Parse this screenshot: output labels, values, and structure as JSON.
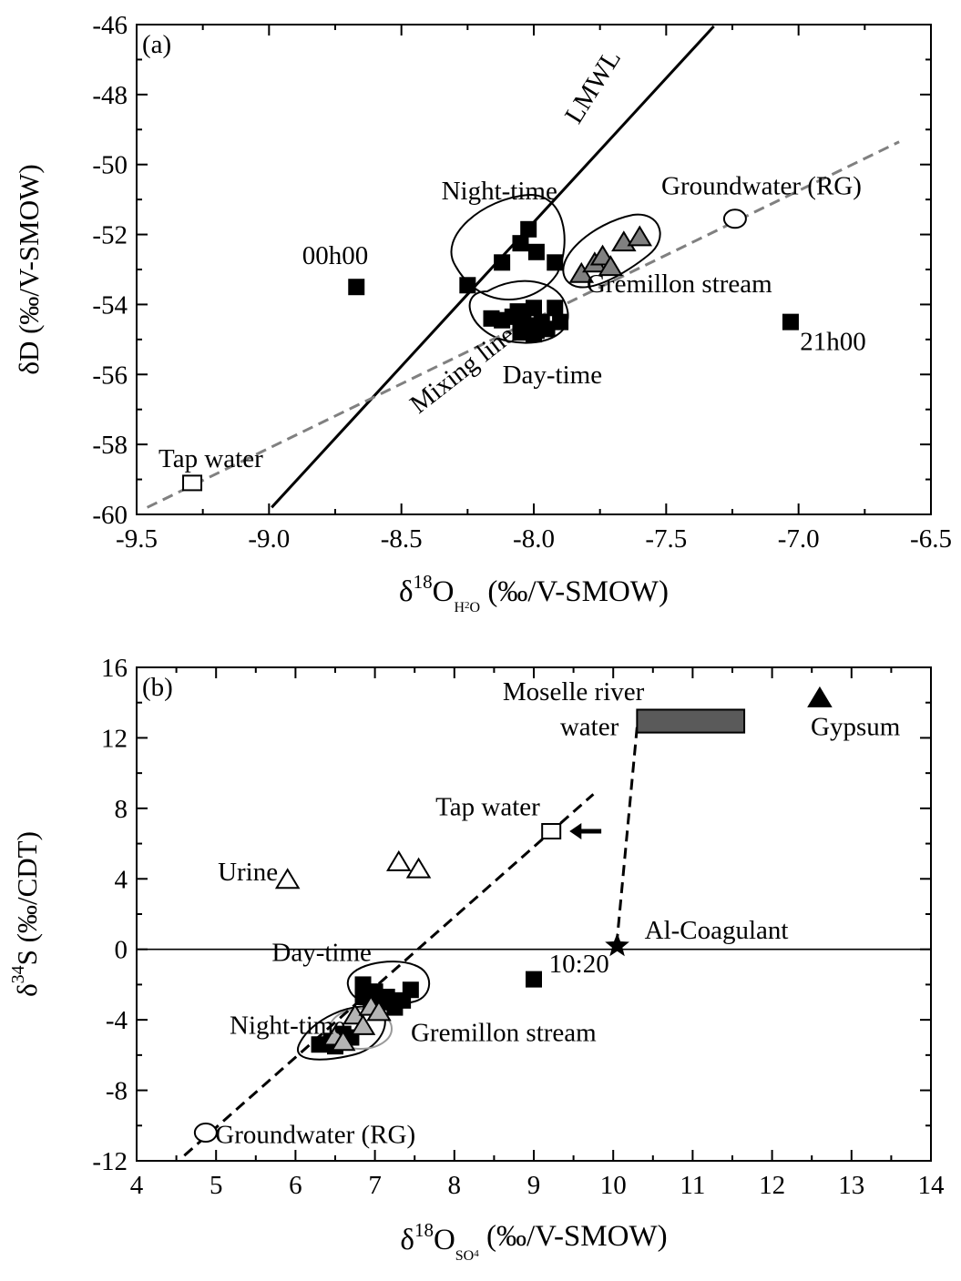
{
  "chart_data": [
    {
      "type": "scatter",
      "panel_label": "(a)",
      "xlabel": {
        "base": "δ",
        "sup": "18",
        "main": "O",
        "sub": "H",
        "sub2": "2",
        "sub3": "O",
        "unit": " (‰/V-SMOW)"
      },
      "ylabel": "δD (‰/V-SMOW)",
      "xlim": [
        -9.5,
        -6.5
      ],
      "ylim": [
        -60,
        -46
      ],
      "xticks": [
        -9.5,
        -9.0,
        -8.5,
        -8.0,
        -7.5,
        -7.0,
        -6.5
      ],
      "xtick_labels": [
        "-9.5",
        "-9.0",
        "-8.5",
        "-8.0",
        "-7.5",
        "-7.0",
        "-6.5"
      ],
      "yticks": [
        -60,
        -58,
        -56,
        -54,
        -52,
        -50,
        -48,
        -46
      ],
      "ytick_labels": [
        "-60",
        "-58",
        "-56",
        "-54",
        "-52",
        "-50",
        "-48",
        "-46"
      ],
      "grid": false,
      "series": [
        {
          "marker": "square-filled",
          "color": "#000000",
          "x": [
            -8.25,
            -8.12,
            -8.05,
            -8.02,
            -7.99,
            -7.92
          ],
          "y": [
            -53.45,
            -52.8,
            -52.25,
            -51.85,
            -52.5,
            -52.8
          ]
        },
        {
          "marker": "square-filled",
          "color": "#000000",
          "x": [
            -8.16,
            -8.12,
            -8.08,
            -8.06,
            -8.04,
            -8.02,
            -8.0,
            -7.99,
            -7.97,
            -7.95,
            -7.92,
            -7.9,
            -8.05,
            -8.0
          ],
          "y": [
            -54.4,
            -54.45,
            -54.35,
            -54.2,
            -54.45,
            -54.6,
            -54.1,
            -54.75,
            -54.5,
            -54.7,
            -54.1,
            -54.5,
            -54.8,
            -54.85
          ]
        },
        {
          "marker": "triangle-gray",
          "color": "#808080",
          "x": [
            -7.82,
            -7.77,
            -7.74,
            -7.71,
            -7.66,
            -7.6
          ],
          "y": [
            -53.15,
            -52.85,
            -52.65,
            -52.95,
            -52.25,
            -52.1
          ]
        },
        {
          "marker": "square-filled",
          "color": "#000000",
          "x": [
            -8.67,
            -7.03
          ],
          "y": [
            -53.5,
            -54.5
          ]
        },
        {
          "marker": "square-open",
          "color": "#000000",
          "x": [
            -9.29
          ],
          "y": [
            -59.1
          ]
        },
        {
          "marker": "circle-open",
          "color": "#000000",
          "x": [
            -7.24
          ],
          "y": [
            -51.55
          ]
        }
      ],
      "lines": [
        {
          "style": "solid",
          "color": "#000000",
          "x": [
            -8.99,
            -7.32
          ],
          "y": [
            -59.8,
            -46.05
          ]
        },
        {
          "style": "dashed",
          "color": "#808080",
          "x": [
            -9.46,
            -6.62
          ],
          "y": [
            -59.8,
            -49.35
          ]
        }
      ],
      "annotations": [
        {
          "text": "LMWL",
          "x": -7.75,
          "y": -47.9,
          "rotate": -58
        },
        {
          "text": "Mixing line",
          "x": -8.25,
          "y": -56.05,
          "rotate": -38
        },
        {
          "text": "Night-time",
          "x": -8.13,
          "y": -51.0
        },
        {
          "text": "Groundwater (RG)",
          "x": -7.14,
          "y": -50.85
        },
        {
          "text": "00h00",
          "x": -8.75,
          "y": -52.85
        },
        {
          "text": "Gremillon stream",
          "x": -7.45,
          "y": -53.65
        },
        {
          "text": "21h00",
          "x": -6.87,
          "y": -55.3
        },
        {
          "text": "Day-time",
          "x": -7.93,
          "y": -56.25
        },
        {
          "text": "Tap water",
          "x": -9.22,
          "y": -58.65
        }
      ]
    },
    {
      "type": "scatter",
      "panel_label": "(b)",
      "xlabel": {
        "base": "δ",
        "sup": "18",
        "main": "O",
        "sub": "SO",
        "sub2": "4",
        "sub3": "",
        "unit": " (‰/V-SMOW)"
      },
      "ylabel": {
        "base": "δ",
        "sup": "34",
        "main": "S (‰/CDT)"
      },
      "xlim": [
        4,
        14
      ],
      "ylim": [
        -12,
        16
      ],
      "xticks": [
        4,
        5,
        6,
        7,
        8,
        9,
        10,
        11,
        12,
        13,
        14
      ],
      "xtick_labels": [
        "4",
        "5",
        "6",
        "7",
        "8",
        "9",
        "10",
        "11",
        "12",
        "13",
        "14"
      ],
      "yticks": [
        -12,
        -8,
        -4,
        0,
        4,
        8,
        12,
        16
      ],
      "ytick_labels": [
        "-12",
        "-8",
        "-4",
        "0",
        "4",
        "8",
        "12",
        "16"
      ],
      "grid": false,
      "series": [
        {
          "marker": "square-filled",
          "color": "#000000",
          "x": [
            6.3,
            6.45,
            6.5,
            6.6,
            6.7,
            6.85,
            6.95,
            7.05,
            7.15,
            7.25,
            7.35,
            7.45,
            6.95,
            7.0,
            6.85
          ],
          "y": [
            -5.4,
            -5.2,
            -5.5,
            -4.8,
            -5.0,
            -2.0,
            -2.5,
            -3.0,
            -2.7,
            -3.3,
            -2.9,
            -2.3,
            -3.2,
            -2.4,
            -2.7
          ]
        },
        {
          "marker": "triangle-gray",
          "color": "#b4b4b4",
          "x": [
            6.5,
            6.6,
            6.75,
            6.85,
            6.95,
            7.05
          ],
          "y": [
            -5.0,
            -5.3,
            -3.8,
            -4.4,
            -3.3,
            -3.6
          ]
        },
        {
          "marker": "square-filled",
          "color": "#000000",
          "x": [
            9.0
          ],
          "y": [
            -1.7
          ]
        },
        {
          "marker": "triangle-open",
          "color": "#000000",
          "x": [
            5.9,
            7.3,
            7.55
          ],
          "y": [
            3.9,
            4.9,
            4.5
          ]
        },
        {
          "marker": "square-open",
          "color": "#000000",
          "x": [
            9.22
          ],
          "y": [
            6.7
          ]
        },
        {
          "marker": "circle-open",
          "color": "#000000",
          "x": [
            4.87
          ],
          "y": [
            -10.4
          ]
        },
        {
          "marker": "star-filled",
          "color": "#000000",
          "x": [
            10.05
          ],
          "y": [
            0.2
          ]
        },
        {
          "marker": "triangle-filled",
          "color": "#000000",
          "x": [
            12.6
          ],
          "y": [
            14.2
          ]
        }
      ],
      "lines": [
        {
          "style": "solid",
          "color": "#000000",
          "x": [
            4,
            14
          ],
          "y": [
            0,
            0
          ]
        },
        {
          "style": "dashed",
          "color": "#000000",
          "x": [
            4.6,
            9.75
          ],
          "y": [
            -11.7,
            8.8
          ]
        },
        {
          "style": "dashed",
          "color": "#000000",
          "x": [
            10.3,
            10.05
          ],
          "y": [
            12.6,
            0.6
          ]
        }
      ],
      "rectangles": [
        {
          "x0": 10.3,
          "x1": 11.65,
          "y0": 12.3,
          "y1": 13.6,
          "fill": "#5a5a5a"
        }
      ],
      "annotations": [
        {
          "text": "Moselle river",
          "x": 9.5,
          "y": 14.15
        },
        {
          "text": "water",
          "x": 9.7,
          "y": 12.15
        },
        {
          "text": "Gypsum",
          "x": 13.05,
          "y": 12.15
        },
        {
          "text": "Tap water",
          "x": 8.42,
          "y": 7.6
        },
        {
          "text": "Urine",
          "x": 5.4,
          "y": 3.9
        },
        {
          "text": "Al-Coagulant",
          "x": 11.3,
          "y": 0.6
        },
        {
          "text": "Day-time",
          "x": 6.33,
          "y": -0.65
        },
        {
          "text": "10:20",
          "x": 9.57,
          "y": -1.3
        },
        {
          "text": "Night-time",
          "x": 5.9,
          "y": -4.8
        },
        {
          "text": "Gremillon stream",
          "x": 8.62,
          "y": -5.2
        },
        {
          "text": "Groundwater (RG)",
          "x": 6.25,
          "y": -11.0
        }
      ]
    }
  ]
}
